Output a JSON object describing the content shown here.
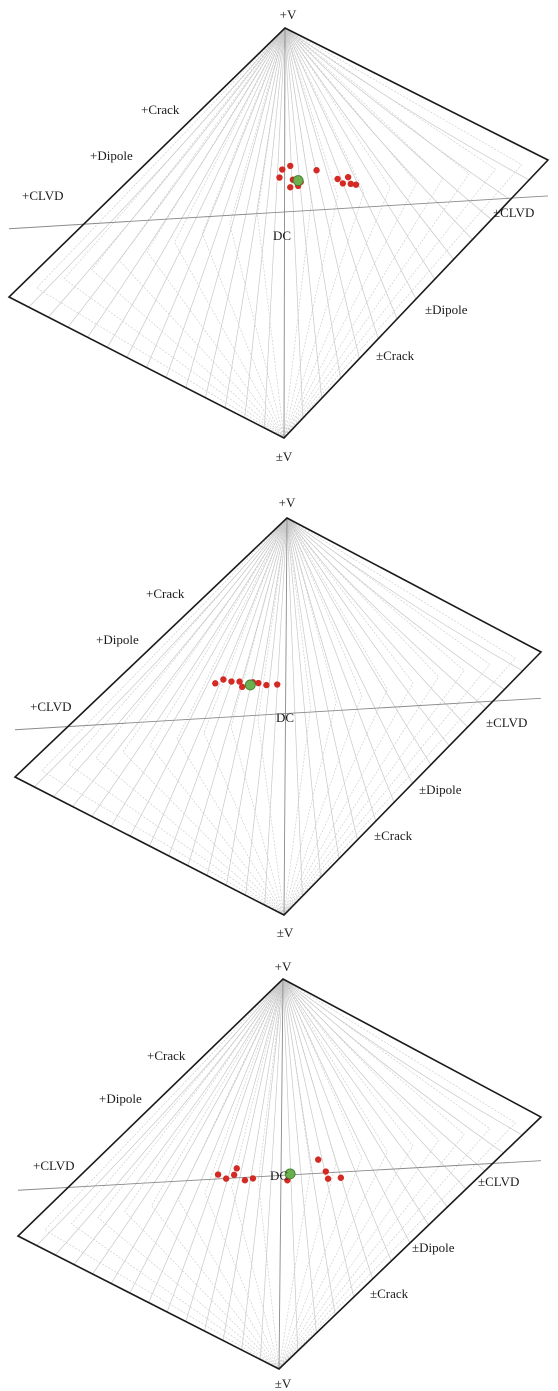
{
  "colors": {
    "frame": "#1a1a1a",
    "grid": "#c8c8c8",
    "axis": "#8a8a8a",
    "event_point": "#d42a24",
    "mean_point": "#6ab04c",
    "mean_point_edge": "#3d7a2a"
  },
  "labels": {
    "plus_v": "+V",
    "pm_v": "±V",
    "plus_crack": "+Crack",
    "plus_dipole": "+Dipole",
    "plus_clvd": "+CLVD",
    "dc": "DC",
    "pm_clvd": "±CLVD",
    "pm_dipole": "±Dipole",
    "pm_crack": "±Crack"
  },
  "chart_data": [
    {
      "type": "scatter",
      "projection": "Hudson source-type plot",
      "xlim": [
        -1,
        1
      ],
      "ylim": [
        -1,
        1
      ],
      "grid": true,
      "red_points": [
        {
          "x": -0.01,
          "y": 0.21
        },
        {
          "x": 0.02,
          "y": 0.22
        },
        {
          "x": -0.02,
          "y": 0.17
        },
        {
          "x": 0.03,
          "y": 0.14
        },
        {
          "x": 0.06,
          "y": 0.12
        },
        {
          "x": 0.02,
          "y": 0.1
        },
        {
          "x": 0.05,
          "y": 0.1
        },
        {
          "x": 0.12,
          "y": 0.17
        },
        {
          "x": 0.2,
          "y": 0.1
        },
        {
          "x": 0.24,
          "y": 0.1
        },
        {
          "x": 0.22,
          "y": 0.07
        },
        {
          "x": 0.25,
          "y": 0.06
        },
        {
          "x": 0.27,
          "y": 0.05
        }
      ],
      "green_point": {
        "x": 0.05,
        "y": 0.13
      }
    },
    {
      "type": "scatter",
      "projection": "Hudson source-type plot",
      "xlim": [
        -1,
        1
      ],
      "ylim": [
        -1,
        1
      ],
      "grid": true,
      "red_points": [
        {
          "x": -0.26,
          "y": 0.24
        },
        {
          "x": -0.23,
          "y": 0.25
        },
        {
          "x": -0.2,
          "y": 0.23
        },
        {
          "x": -0.17,
          "y": 0.22
        },
        {
          "x": -0.16,
          "y": 0.19
        },
        {
          "x": -0.12,
          "y": 0.2
        },
        {
          "x": -0.1,
          "y": 0.19
        },
        {
          "x": -0.07,
          "y": 0.17
        },
        {
          "x": -0.03,
          "y": 0.16
        }
      ],
      "green_point": {
        "x": -0.13,
        "y": 0.19
      }
    },
    {
      "type": "scatter",
      "projection": "Hudson source-type plot",
      "xlim": [
        -1,
        1
      ],
      "ylim": [
        -1,
        1
      ],
      "grid": true,
      "red_points": [
        {
          "x": -0.25,
          "y": 0.08
        },
        {
          "x": -0.22,
          "y": 0.05
        },
        {
          "x": -0.18,
          "y": 0.09
        },
        {
          "x": -0.19,
          "y": 0.06
        },
        {
          "x": -0.15,
          "y": 0.02
        },
        {
          "x": -0.12,
          "y": 0.02
        },
        {
          "x": 0.01,
          "y": -0.03
        },
        {
          "x": 0.13,
          "y": 0.04
        },
        {
          "x": 0.16,
          "y": -0.03
        },
        {
          "x": 0.17,
          "y": -0.07
        },
        {
          "x": 0.22,
          "y": -0.08
        }
      ],
      "green_point": {
        "x": 0.02,
        "y": 0.0
      }
    }
  ]
}
